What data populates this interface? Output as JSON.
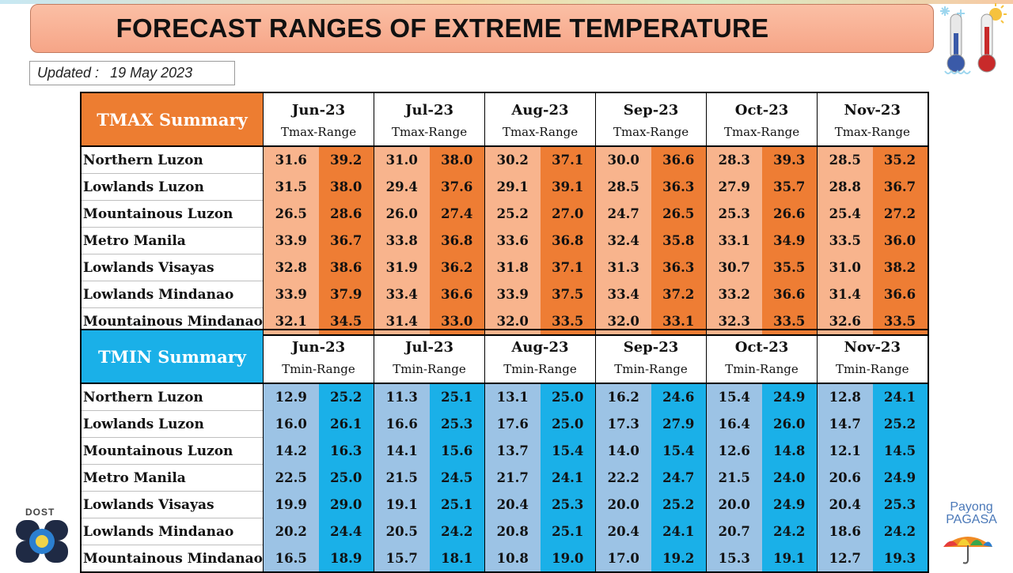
{
  "title": "FORECAST RANGES OF EXTREME TEMPERATURE",
  "updated": {
    "label": "Updated :",
    "date": "19 May 2023"
  },
  "months": [
    "Jun-23",
    "Jul-23",
    "Aug-23",
    "Sep-23",
    "Oct-23",
    "Nov-23"
  ],
  "colors": {
    "tmax_header": "#ed7d31",
    "tmax_low": "#f8b48d",
    "tmax_high": "#ee7d34",
    "tmin_header": "#1ab0e8",
    "tmin_low": "#9cc3e5",
    "tmin_high": "#1ab0e8",
    "title_bg": "#f6a587"
  },
  "tmax": {
    "summary_label": "TMAX Summary",
    "range_label": "Tmax-Range",
    "rows": [
      {
        "region": "Northern Luzon",
        "values": [
          "31.6",
          "39.2",
          "31.0",
          "38.0",
          "30.2",
          "37.1",
          "30.0",
          "36.6",
          "28.3",
          "39.3",
          "28.5",
          "35.2"
        ]
      },
      {
        "region": "Lowlands Luzon",
        "values": [
          "31.5",
          "38.0",
          "29.4",
          "37.6",
          "29.1",
          "39.1",
          "28.5",
          "36.3",
          "27.9",
          "35.7",
          "28.8",
          "36.7"
        ]
      },
      {
        "region": "Mountainous Luzon",
        "values": [
          "26.5",
          "28.6",
          "26.0",
          "27.4",
          "25.2",
          "27.0",
          "24.7",
          "26.5",
          "25.3",
          "26.6",
          "25.4",
          "27.2"
        ]
      },
      {
        "region": "Metro Manila",
        "values": [
          "33.9",
          "36.7",
          "33.8",
          "36.8",
          "33.6",
          "36.8",
          "32.4",
          "35.8",
          "33.1",
          "34.9",
          "33.5",
          "36.0"
        ]
      },
      {
        "region": "Lowlands Visayas",
        "values": [
          "32.8",
          "38.6",
          "31.9",
          "36.2",
          "31.8",
          "37.1",
          "31.3",
          "36.3",
          "30.7",
          "35.5",
          "31.0",
          "38.2"
        ]
      },
      {
        "region": "Lowlands Mindanao",
        "values": [
          "33.9",
          "37.9",
          "33.4",
          "36.6",
          "33.9",
          "37.5",
          "33.4",
          "37.2",
          "33.2",
          "36.6",
          "31.4",
          "36.6"
        ]
      },
      {
        "region": "Mountainous Mindanao",
        "values": [
          "32.1",
          "34.5",
          "31.4",
          "33.0",
          "32.0",
          "33.5",
          "32.0",
          "33.1",
          "32.3",
          "33.5",
          "32.6",
          "33.5"
        ]
      }
    ]
  },
  "tmin": {
    "summary_label": "TMIN Summary",
    "range_label": "Tmin-Range",
    "rows": [
      {
        "region": "Northern Luzon",
        "values": [
          "12.9",
          "25.2",
          "11.3",
          "25.1",
          "13.1",
          "25.0",
          "16.2",
          "24.6",
          "15.4",
          "24.9",
          "12.8",
          "24.1"
        ]
      },
      {
        "region": "Lowlands Luzon",
        "values": [
          "16.0",
          "26.1",
          "16.6",
          "25.3",
          "17.6",
          "25.0",
          "17.3",
          "27.9",
          "16.4",
          "26.0",
          "14.7",
          "25.2"
        ]
      },
      {
        "region": "Mountainous Luzon",
        "values": [
          "14.2",
          "16.3",
          "14.1",
          "15.6",
          "13.7",
          "15.4",
          "14.0",
          "15.4",
          "12.6",
          "14.8",
          "12.1",
          "14.5"
        ]
      },
      {
        "region": "Metro Manila",
        "values": [
          "22.5",
          "25.0",
          "21.5",
          "24.5",
          "21.7",
          "24.1",
          "22.2",
          "24.7",
          "21.5",
          "24.0",
          "20.6",
          "24.9"
        ]
      },
      {
        "region": "Lowlands Visayas",
        "values": [
          "19.9",
          "29.0",
          "19.1",
          "25.1",
          "20.4",
          "25.3",
          "20.0",
          "25.2",
          "20.0",
          "24.9",
          "20.4",
          "25.3"
        ]
      },
      {
        "region": "Lowlands Mindanao",
        "values": [
          "20.2",
          "24.4",
          "20.5",
          "24.2",
          "20.8",
          "25.1",
          "20.4",
          "24.1",
          "20.7",
          "24.2",
          "18.6",
          "24.2"
        ]
      },
      {
        "region": "Mountainous Mindanao",
        "values": [
          "16.5",
          "18.9",
          "15.7",
          "18.1",
          "10.8",
          "19.0",
          "17.0",
          "19.2",
          "15.3",
          "19.1",
          "12.7",
          "19.3"
        ]
      }
    ]
  },
  "logos": {
    "dost_label": "DOST",
    "payong_line1": "Payong",
    "payong_line2": "PAGASA"
  }
}
